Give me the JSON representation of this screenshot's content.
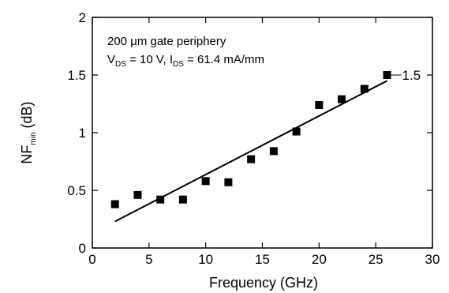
{
  "chart_data": {
    "type": "scatter",
    "title": "",
    "xlabel": "Frequency (GHz)",
    "ylabel": {
      "main": "NF",
      "sub": "min",
      "unit": " (dB)"
    },
    "xlim": [
      0,
      30
    ],
    "ylim": [
      0,
      2
    ],
    "x_ticks": [
      0,
      5,
      10,
      15,
      20,
      25,
      30
    ],
    "x_tick_labels": [
      "0",
      "5",
      "10",
      "15",
      "20",
      "25",
      "30"
    ],
    "y_ticks": [
      0,
      0.5,
      1,
      1.5,
      2
    ],
    "y_tick_labels": [
      "0",
      "0.5",
      "1",
      "1.5",
      "2"
    ],
    "grid": false,
    "legend": "none",
    "series": [
      {
        "x": [
          2,
          4,
          6,
          8,
          10,
          12,
          14,
          16,
          18,
          20,
          22,
          24,
          26
        ],
        "y": [
          0.38,
          0.46,
          0.42,
          0.42,
          0.58,
          0.57,
          0.77,
          0.84,
          1.01,
          1.24,
          1.29,
          1.38,
          1.5
        ],
        "marker": "square",
        "color": "#000000"
      }
    ],
    "fit_line": {
      "x": [
        2,
        26
      ],
      "y": [
        0.23,
        1.45
      ],
      "color": "#000000"
    },
    "annotations": {
      "line1": "200 μm gate periphery",
      "v_main": "V",
      "v_sub": "DS",
      "v_value": " = 10 V, I",
      "i_sub": "DS",
      "i_value": " = 61.4 mA/mm",
      "end_label": "1.5",
      "end_label_at": {
        "x": 26,
        "y": 1.5
      }
    }
  }
}
